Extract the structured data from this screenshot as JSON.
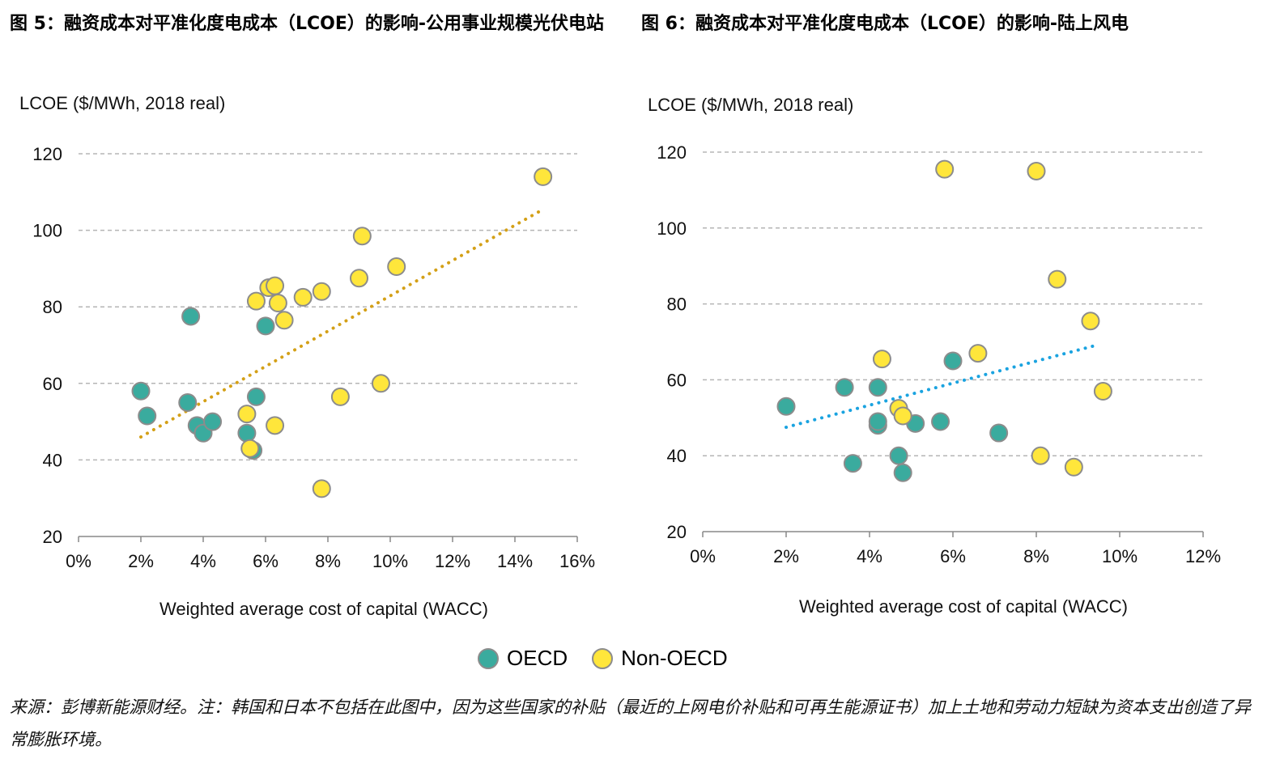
{
  "titles": {
    "left": "图 5：融资成本对平准化度电成本（LCOE）的影响-公用事业规模光伏电站",
    "right": "图 6：融资成本对平准化度电成本（LCOE）的影响-陆上风电"
  },
  "legend": {
    "oecd_label": "OECD",
    "non_oecd_label": "Non-OECD",
    "oecd_color": "#3aab9e",
    "non_oecd_color": "#ffe63b"
  },
  "footnote": "来源：彭博新能源财经。注：韩国和日本不包括在此图中，因为这些国家的补贴（最近的上网电价补贴和可再生能源证书）加上土地和劳动力短缺为资本支出创造了异常膨胀环境。",
  "chart_data": [
    {
      "type": "scatter",
      "title": "",
      "ylabel": "LCOE ($/MWh, 2018 real)",
      "xlabel": "Weighted average cost of capital (WACC)",
      "xlim": [
        0,
        0.16
      ],
      "ylim": [
        20,
        120
      ],
      "x_ticks": [
        "0%",
        "2%",
        "4%",
        "6%",
        "8%",
        "10%",
        "12%",
        "14%",
        "16%"
      ],
      "y_ticks": [
        "20",
        "40",
        "60",
        "80",
        "100",
        "120"
      ],
      "trendline": {
        "color": "#d4a017",
        "x": [
          0.02,
          0.148
        ],
        "y": [
          46,
          105
        ]
      },
      "series": [
        {
          "name": "OECD",
          "color": "#3aab9e",
          "points": [
            [
              0.02,
              58
            ],
            [
              0.022,
              51.5
            ],
            [
              0.035,
              55
            ],
            [
              0.036,
              77.5
            ],
            [
              0.038,
              49
            ],
            [
              0.04,
              47
            ],
            [
              0.043,
              50
            ],
            [
              0.054,
              47
            ],
            [
              0.057,
              56.5
            ],
            [
              0.056,
              42.5
            ],
            [
              0.06,
              75
            ]
          ]
        },
        {
          "name": "Non-OECD",
          "color": "#ffe63b",
          "points": [
            [
              0.054,
              52
            ],
            [
              0.055,
              43
            ],
            [
              0.057,
              81.5
            ],
            [
              0.061,
              85
            ],
            [
              0.063,
              85.5
            ],
            [
              0.064,
              81
            ],
            [
              0.066,
              76.5
            ],
            [
              0.063,
              49
            ],
            [
              0.072,
              82.5
            ],
            [
              0.078,
              84
            ],
            [
              0.078,
              32.5
            ],
            [
              0.084,
              56.5
            ],
            [
              0.09,
              87.5
            ],
            [
              0.091,
              98.5
            ],
            [
              0.097,
              60
            ],
            [
              0.102,
              90.5
            ],
            [
              0.149,
              114
            ]
          ]
        }
      ]
    },
    {
      "type": "scatter",
      "title": "",
      "ylabel": "LCOE ($/MWh, 2018 real)",
      "xlabel": "Weighted average cost of capital (WACC)",
      "xlim": [
        0,
        0.12
      ],
      "ylim": [
        20,
        120
      ],
      "x_ticks": [
        "0%",
        "2%",
        "4%",
        "6%",
        "8%",
        "10%",
        "12%"
      ],
      "y_ticks": [
        "20",
        "40",
        "60",
        "80",
        "100",
        "120"
      ],
      "trendline": {
        "color": "#1aa3e0",
        "x": [
          0.02,
          0.094
        ],
        "y": [
          47.5,
          69
        ]
      },
      "series": [
        {
          "name": "OECD",
          "color": "#3aab9e",
          "points": [
            [
              0.02,
              53
            ],
            [
              0.034,
              58
            ],
            [
              0.036,
              38
            ],
            [
              0.042,
              58
            ],
            [
              0.042,
              48
            ],
            [
              0.042,
              49
            ],
            [
              0.047,
              40
            ],
            [
              0.048,
              35.5
            ],
            [
              0.051,
              48.5
            ],
            [
              0.057,
              49
            ],
            [
              0.06,
              65
            ],
            [
              0.071,
              46
            ]
          ]
        },
        {
          "name": "Non-OECD",
          "color": "#ffe63b",
          "points": [
            [
              0.043,
              65.5
            ],
            [
              0.047,
              52.5
            ],
            [
              0.048,
              50.5
            ],
            [
              0.058,
              115.5
            ],
            [
              0.066,
              67
            ],
            [
              0.08,
              115
            ],
            [
              0.081,
              40
            ],
            [
              0.085,
              86.5
            ],
            [
              0.089,
              37
            ],
            [
              0.093,
              75.5
            ],
            [
              0.096,
              57
            ]
          ]
        }
      ]
    }
  ]
}
